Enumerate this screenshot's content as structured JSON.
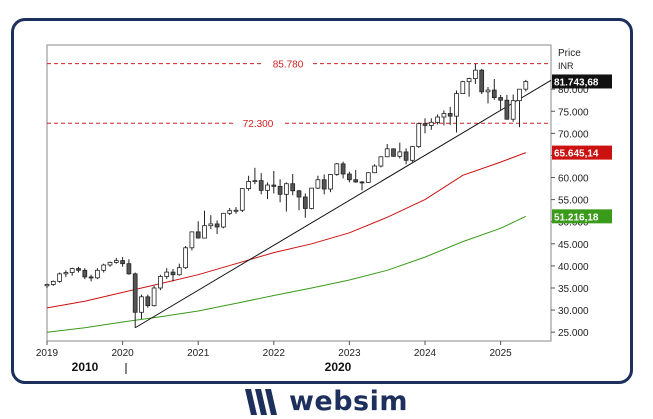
{
  "brand": {
    "name": "websim",
    "logo_color": "#1d2f5c"
  },
  "chart_data": {
    "type": "candlestick",
    "title": "",
    "ylabel": "Price",
    "yunit": "INR",
    "ylim": [
      23000,
      90000
    ],
    "xlim": [
      "2019-01",
      "2025-09"
    ],
    "grid": false,
    "ytick_labels": [
      "25.000",
      "30.000",
      "35.000",
      "40.000",
      "45.000",
      "50.000",
      "55.000",
      "60.000",
      "65.000",
      "70.000",
      "75.000",
      "80.000"
    ],
    "yticks": [
      25000,
      30000,
      35000,
      40000,
      45000,
      50000,
      55000,
      60000,
      65000,
      70000,
      75000,
      80000
    ],
    "xtick_labels": [
      "2019",
      "2020",
      "2021",
      "2022",
      "2023",
      "2024",
      "2025"
    ],
    "xticks": [
      "2019-01",
      "2020-01",
      "2021-01",
      "2022-01",
      "2023-01",
      "2024-01",
      "2025-01"
    ],
    "secondary_axis": {
      "labels": [
        "2010",
        "2020"
      ],
      "ticks": [
        "2010",
        "2020"
      ]
    },
    "horizontal_levels": [
      {
        "value": 85780,
        "label": "85.780",
        "color": "#cc2222"
      },
      {
        "value": 72300,
        "label": "72.300",
        "color": "#cc2222"
      }
    ],
    "trendline": {
      "from": [
        "2020-03",
        26000
      ],
      "to": [
        "2025-09",
        82000
      ],
      "color": "#111111"
    },
    "series": [
      {
        "name": "MA red",
        "color": "#cc1111",
        "last_label": "65.645,14",
        "points": [
          [
            "2019-01",
            30500
          ],
          [
            "2019-07",
            32000
          ],
          [
            "2020-01",
            34000
          ],
          [
            "2020-07",
            36000
          ],
          [
            "2021-01",
            38000
          ],
          [
            "2021-07",
            40500
          ],
          [
            "2022-01",
            43000
          ],
          [
            "2022-07",
            45000
          ],
          [
            "2023-01",
            47500
          ],
          [
            "2023-07",
            51000
          ],
          [
            "2024-01",
            55000
          ],
          [
            "2024-07",
            60500
          ],
          [
            "2025-01",
            63500
          ],
          [
            "2025-05",
            65645
          ]
        ]
      },
      {
        "name": "MA green",
        "color": "#3a9a1a",
        "last_label": "51.216,18",
        "points": [
          [
            "2019-01",
            25000
          ],
          [
            "2019-07",
            26000
          ],
          [
            "2020-01",
            27300
          ],
          [
            "2020-07",
            28500
          ],
          [
            "2021-01",
            29800
          ],
          [
            "2021-07",
            31500
          ],
          [
            "2022-01",
            33300
          ],
          [
            "2022-07",
            35000
          ],
          [
            "2023-01",
            36800
          ],
          [
            "2023-07",
            39000
          ],
          [
            "2024-01",
            42000
          ],
          [
            "2024-07",
            45500
          ],
          [
            "2025-01",
            48500
          ],
          [
            "2025-05",
            51216
          ]
        ]
      }
    ],
    "last_price_label": "81.743,68",
    "candles": [
      [
        "2019-01",
        35500,
        36000,
        35000,
        35800
      ],
      [
        "2019-02",
        35800,
        36700,
        35500,
        36500
      ],
      [
        "2019-03",
        36500,
        38500,
        36200,
        38200
      ],
      [
        "2019-04",
        38200,
        39000,
        37500,
        38500
      ],
      [
        "2019-05",
        38500,
        39600,
        37800,
        39400
      ],
      [
        "2019-06",
        39400,
        39800,
        38500,
        39000
      ],
      [
        "2019-07",
        39000,
        39500,
        37000,
        37500
      ],
      [
        "2019-08",
        37500,
        38000,
        36500,
        37300
      ],
      [
        "2019-09",
        37300,
        39500,
        37000,
        39000
      ],
      [
        "2019-10",
        39000,
        40500,
        38500,
        40200
      ],
      [
        "2019-11",
        40200,
        41000,
        39800,
        40800
      ],
      [
        "2019-12",
        40800,
        41800,
        40500,
        41200
      ],
      [
        "2020-01",
        41200,
        42000,
        39800,
        40500
      ],
      [
        "2020-02",
        40500,
        41500,
        38000,
        38200
      ],
      [
        "2020-03",
        38200,
        38500,
        26000,
        29500
      ],
      [
        "2020-04",
        29500,
        33500,
        28000,
        33000
      ],
      [
        "2020-05",
        33000,
        33500,
        30500,
        31000
      ],
      [
        "2020-06",
        31000,
        35500,
        30800,
        35000
      ],
      [
        "2020-07",
        35000,
        38000,
        34500,
        37600
      ],
      [
        "2020-08",
        37600,
        39500,
        37000,
        38600
      ],
      [
        "2020-09",
        38600,
        39300,
        36500,
        38000
      ],
      [
        "2020-10",
        38000,
        40500,
        37800,
        39600
      ],
      [
        "2020-11",
        39600,
        44500,
        39300,
        44100
      ],
      [
        "2020-12",
        44100,
        47800,
        43500,
        47700
      ],
      [
        "2021-01",
        47700,
        50100,
        46200,
        46300
      ],
      [
        "2021-02",
        46300,
        52500,
        46200,
        49100
      ],
      [
        "2021-03",
        49100,
        51500,
        48300,
        49500
      ],
      [
        "2021-04",
        49500,
        50300,
        47200,
        48800
      ],
      [
        "2021-05",
        48800,
        52000,
        48500,
        51900
      ],
      [
        "2021-06",
        51900,
        53100,
        51500,
        52500
      ],
      [
        "2021-07",
        52500,
        53300,
        51800,
        52600
      ],
      [
        "2021-08",
        52600,
        57600,
        52200,
        57500
      ],
      [
        "2021-09",
        57500,
        60400,
        57000,
        59100
      ],
      [
        "2021-10",
        59100,
        62200,
        58500,
        59300
      ],
      [
        "2021-11",
        59300,
        61000,
        56200,
        57100
      ],
      [
        "2021-12",
        57100,
        58900,
        55100,
        58300
      ],
      [
        "2022-01",
        58300,
        61500,
        56400,
        58000
      ],
      [
        "2022-02",
        58000,
        59600,
        54400,
        56200
      ],
      [
        "2022-03",
        56200,
        58900,
        52300,
        58600
      ],
      [
        "2022-04",
        58600,
        60800,
        56000,
        57000
      ],
      [
        "2022-05",
        57000,
        57200,
        52600,
        55600
      ],
      [
        "2022-06",
        55600,
        56400,
        50900,
        53000
      ],
      [
        "2022-07",
        53000,
        57600,
        52800,
        57600
      ],
      [
        "2022-08",
        57600,
        60400,
        57400,
        59500
      ],
      [
        "2022-09",
        59500,
        60700,
        56200,
        57400
      ],
      [
        "2022-10",
        57400,
        60800,
        56700,
        60700
      ],
      [
        "2022-11",
        60700,
        63300,
        60400,
        63100
      ],
      [
        "2022-12",
        63100,
        63600,
        59800,
        60800
      ],
      [
        "2023-01",
        60800,
        61300,
        58900,
        59500
      ],
      [
        "2023-02",
        59500,
        61700,
        58800,
        59000
      ],
      [
        "2023-03",
        59000,
        59200,
        57100,
        58900
      ],
      [
        "2023-04",
        58900,
        61200,
        58800,
        61100
      ],
      [
        "2023-05",
        61100,
        63000,
        61000,
        62600
      ],
      [
        "2023-06",
        62600,
        64800,
        62300,
        64700
      ],
      [
        "2023-07",
        64700,
        67600,
        64600,
        66500
      ],
      [
        "2023-08",
        66500,
        66600,
        64700,
        64800
      ],
      [
        "2023-09",
        64800,
        67900,
        64300,
        65800
      ],
      [
        "2023-10",
        65800,
        66600,
        63000,
        63900
      ],
      [
        "2023-11",
        63900,
        67100,
        63500,
        67000
      ],
      [
        "2023-12",
        67000,
        72400,
        66700,
        72200
      ],
      [
        "2024-01",
        72200,
        73400,
        70000,
        71800
      ],
      [
        "2024-02",
        71800,
        73400,
        70800,
        72500
      ],
      [
        "2024-03",
        72500,
        74300,
        72000,
        73700
      ],
      [
        "2024-04",
        73700,
        75200,
        71800,
        74500
      ],
      [
        "2024-05",
        74500,
        76000,
        71900,
        73900
      ],
      [
        "2024-06",
        73900,
        79700,
        70200,
        79000
      ],
      [
        "2024-07",
        79000,
        81900,
        78900,
        81700
      ],
      [
        "2024-08",
        81700,
        82600,
        78300,
        82400
      ],
      [
        "2024-09",
        82400,
        85800,
        81200,
        84300
      ],
      [
        "2024-10",
        84300,
        84600,
        78900,
        79400
      ],
      [
        "2024-11",
        79400,
        80500,
        76800,
        79800
      ],
      [
        "2024-12",
        79800,
        82300,
        77600,
        78100
      ],
      [
        "2025-01",
        78100,
        78700,
        75300,
        77500
      ],
      [
        "2025-02",
        77500,
        78700,
        73100,
        73200
      ],
      [
        "2025-03",
        73200,
        78800,
        72600,
        77400
      ],
      [
        "2025-04",
        77400,
        80000,
        71400,
        80000
      ],
      [
        "2025-05",
        80000,
        82100,
        79500,
        81744
      ]
    ]
  }
}
